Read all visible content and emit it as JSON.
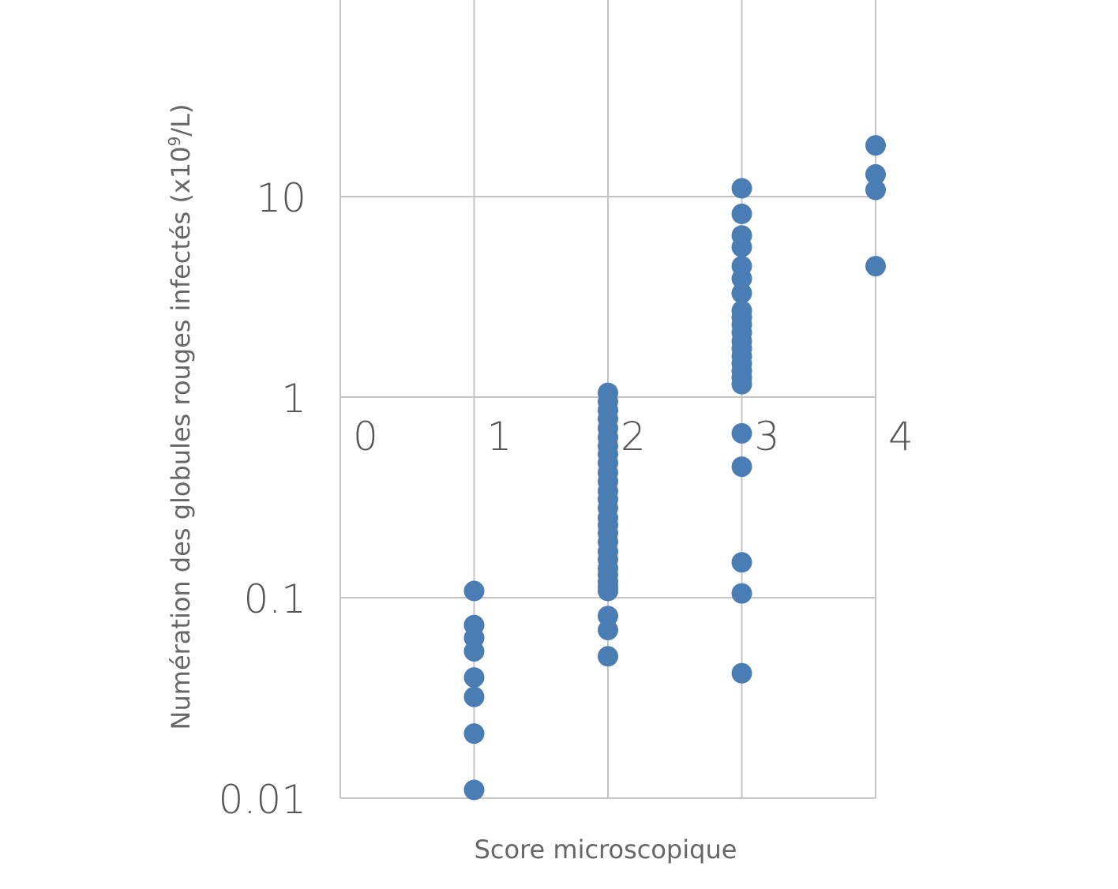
{
  "chart_data": {
    "type": "scatter",
    "title": "",
    "xlabel": "Score microscopique",
    "ylabel": "Numération des globules rouges infectés (x10",
    "ylabel_sup": "9",
    "ylabel_end": "/L)",
    "yscale": "log",
    "ylim": [
      0.01,
      100
    ],
    "xlim": [
      0,
      4
    ],
    "grid": true,
    "x_ticks": [
      "0",
      "1",
      "2",
      "3",
      "4"
    ],
    "y_ticks": [
      {
        "value": 10,
        "label": "10"
      },
      {
        "value": 1,
        "label": "1"
      },
      {
        "value": 0.1,
        "label": "0.1"
      },
      {
        "value": 0.01,
        "label": "0.01"
      }
    ],
    "color": "#4a7db4",
    "series": [
      {
        "x": 1,
        "values": [
          0.108,
          0.073,
          0.063,
          0.054,
          0.04,
          0.032,
          0.021,
          0.011
        ]
      },
      {
        "x": 2,
        "values": [
          1.05,
          0.95,
          0.86,
          0.78,
          0.7,
          0.63,
          0.57,
          0.52,
          0.47,
          0.42,
          0.38,
          0.34,
          0.31,
          0.28,
          0.25,
          0.23,
          0.21,
          0.19,
          0.17,
          0.155,
          0.14,
          0.13,
          0.12,
          0.113,
          0.108,
          0.081,
          0.069,
          0.051
        ]
      },
      {
        "x": 3,
        "values": [
          11.0,
          8.2,
          6.4,
          5.6,
          4.5,
          3.9,
          3.3,
          2.7,
          2.5,
          2.3,
          2.1,
          1.9,
          1.75,
          1.6,
          1.47,
          1.35,
          1.25,
          1.16,
          0.66,
          0.45,
          0.15,
          0.105,
          0.042
        ]
      },
      {
        "x": 4,
        "values": [
          18.0,
          12.9,
          10.8,
          4.5
        ]
      }
    ]
  }
}
